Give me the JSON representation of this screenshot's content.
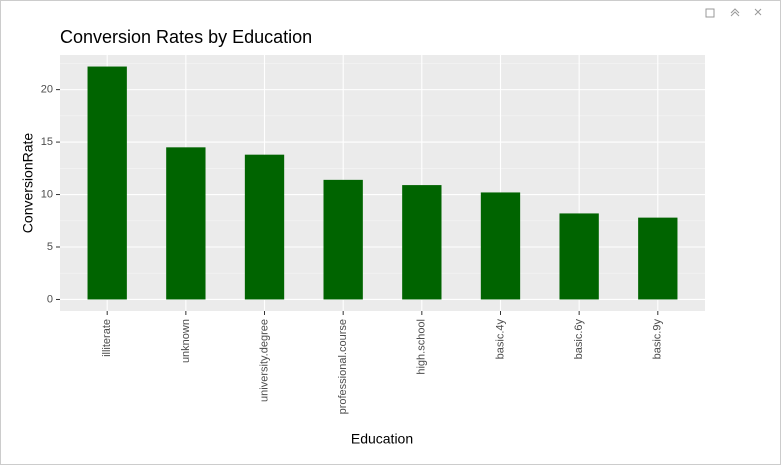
{
  "chart_data": {
    "type": "bar",
    "title": "Conversion Rates by Education",
    "x_label": "Education",
    "y_label": "ConversionRate",
    "categories": [
      "illiterate",
      "unknown",
      "university.degree",
      "professional.course",
      "high.school",
      "basic.4y",
      "basic.6y",
      "basic.9y"
    ],
    "values": [
      22.2,
      14.5,
      13.8,
      11.4,
      10.9,
      10.2,
      8.2,
      7.8
    ],
    "color": "#006400",
    "ylim": [
      -1.1,
      23.3
    ],
    "yticks": [
      0,
      5,
      10,
      15,
      20
    ],
    "grid": true
  }
}
